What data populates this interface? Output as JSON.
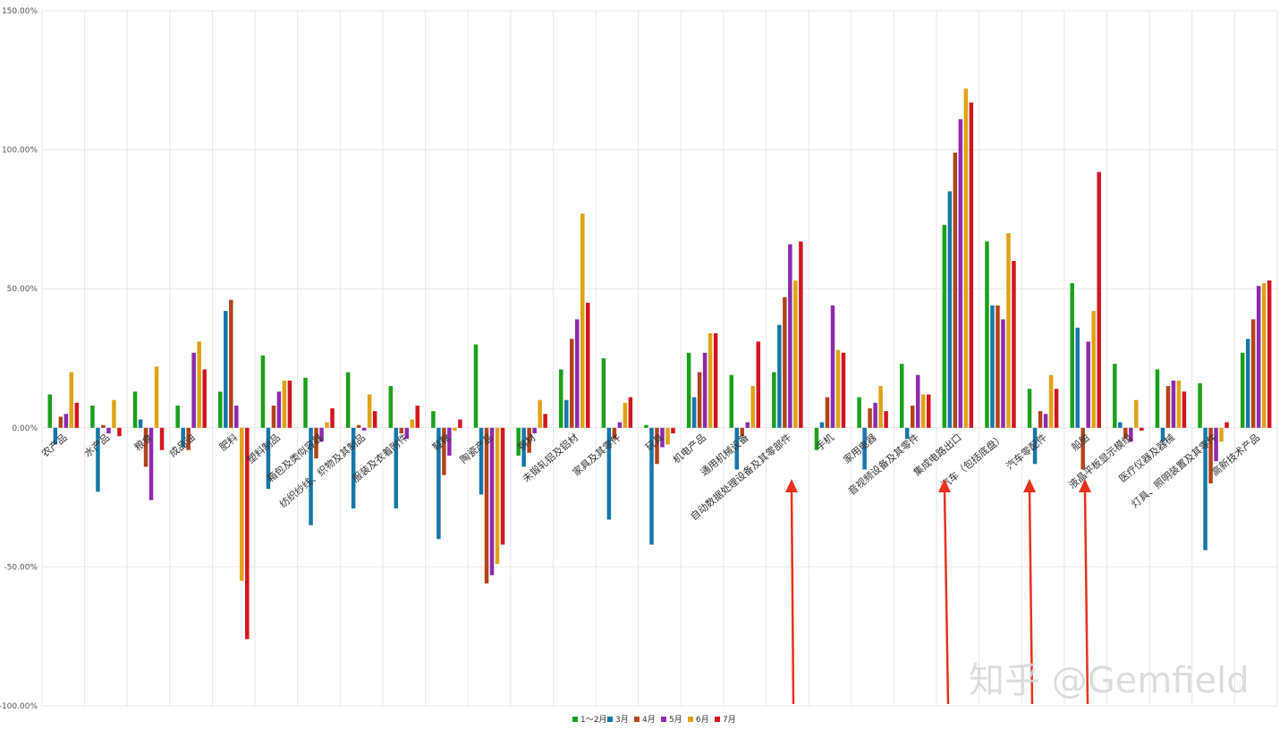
{
  "chart_data": {
    "type": "bar",
    "title": "",
    "xlabel": "",
    "ylabel": "",
    "ylim": [
      -1.0,
      1.5
    ],
    "yticks": [
      "-100.00%",
      "-50.00%",
      "0.00%",
      "50.00%",
      "100.00%",
      "150.00%"
    ],
    "grid": true,
    "legend_position": "bottom",
    "categories": [
      "农产品",
      "水产品",
      "粮食",
      "成品油",
      "肥料",
      "塑料制品",
      "箱包及类似容器",
      "纺织纱线、织物及其制品",
      "服装及衣着附件",
      "鞋靴",
      "陶瓷产品",
      "钢材",
      "未锻轧铝及铝材",
      "家具及其零件",
      "玩具",
      "机电产品",
      "通用机械设备",
      "自动数据处理设备及其零部件",
      "手机",
      "家用电器",
      "音视频设备及其零件",
      "集成电路出口",
      "汽车（包括底盘）",
      "汽车零配件",
      "船舶",
      "液晶平板显示模组",
      "医疗仪器及器械",
      "灯具、照明装置及其零件",
      "高新技术产品"
    ],
    "series": [
      {
        "name": "1～2月",
        "color": "#1aa11a",
        "values": [
          0.12,
          0.08,
          0.13,
          0.08,
          0.13,
          0.26,
          0.18,
          0.2,
          0.15,
          0.06,
          0.3,
          -0.1,
          0.21,
          0.25,
          0.01,
          0.27,
          0.19,
          0.2,
          -0.08,
          0.11,
          0.23,
          0.73,
          0.67,
          0.14,
          0.52,
          0.23,
          0.21,
          0.16,
          0.27
        ]
      },
      {
        "name": "3月",
        "color": "#1577a8",
        "values": [
          -0.06,
          -0.23,
          0.03,
          -0.07,
          0.42,
          -0.22,
          -0.35,
          -0.29,
          -0.29,
          -0.4,
          -0.24,
          -0.14,
          0.1,
          -0.33,
          -0.42,
          0.11,
          -0.15,
          0.37,
          0.02,
          -0.15,
          -0.04,
          0.85,
          0.44,
          -0.13,
          0.36,
          0.02,
          -0.05,
          -0.44,
          0.32
        ]
      },
      {
        "name": "4月",
        "color": "#b2441a",
        "values": [
          0.04,
          0.01,
          -0.14,
          -0.08,
          0.46,
          0.08,
          -0.11,
          0.01,
          -0.02,
          -0.17,
          -0.56,
          -0.09,
          0.32,
          -0.04,
          -0.13,
          0.2,
          -0.03,
          0.47,
          0.11,
          0.07,
          0.08,
          0.99,
          0.44,
          0.06,
          -0.15,
          -0.04,
          0.15,
          -0.2,
          0.39
        ]
      },
      {
        "name": "5月",
        "color": "#8e2aad",
        "values": [
          0.05,
          -0.02,
          -0.26,
          0.27,
          0.08,
          0.13,
          -0.05,
          -0.01,
          -0.04,
          -0.1,
          -0.53,
          -0.02,
          0.39,
          0.02,
          -0.07,
          0.27,
          0.02,
          0.66,
          0.44,
          0.09,
          0.19,
          1.11,
          0.39,
          0.05,
          0.31,
          -0.05,
          0.17,
          -0.12,
          0.51
        ]
      },
      {
        "name": "6月",
        "color": "#e0a215",
        "values": [
          0.2,
          0.1,
          0.22,
          0.31,
          -0.55,
          0.17,
          0.02,
          0.12,
          0.03,
          -0.01,
          -0.49,
          0.1,
          0.77,
          0.09,
          -0.06,
          0.34,
          0.15,
          0.53,
          0.28,
          0.15,
          0.12,
          1.22,
          0.7,
          0.19,
          0.42,
          0.1,
          0.17,
          -0.05,
          0.52
        ]
      },
      {
        "name": "7月",
        "color": "#d4141e",
        "values": [
          0.09,
          -0.03,
          -0.08,
          0.21,
          -0.76,
          0.17,
          0.07,
          0.06,
          0.08,
          0.03,
          -0.42,
          0.05,
          0.45,
          0.11,
          -0.02,
          0.34,
          0.31,
          0.67,
          0.27,
          0.06,
          0.12,
          1.17,
          0.6,
          0.14,
          0.92,
          -0.01,
          0.13,
          0.02,
          0.53
        ]
      }
    ]
  },
  "watermark": {
    "text": "知乎 @Gemfield"
  },
  "annotations": {
    "arrow_color": "#e8321e",
    "arrows_point_to": [
      "自动数据处理设备及其零部件",
      "集成电路出口",
      "汽车零配件",
      "船舶"
    ]
  },
  "colors": {
    "grid": "#e6e6e6",
    "axis_text": "#555555"
  }
}
